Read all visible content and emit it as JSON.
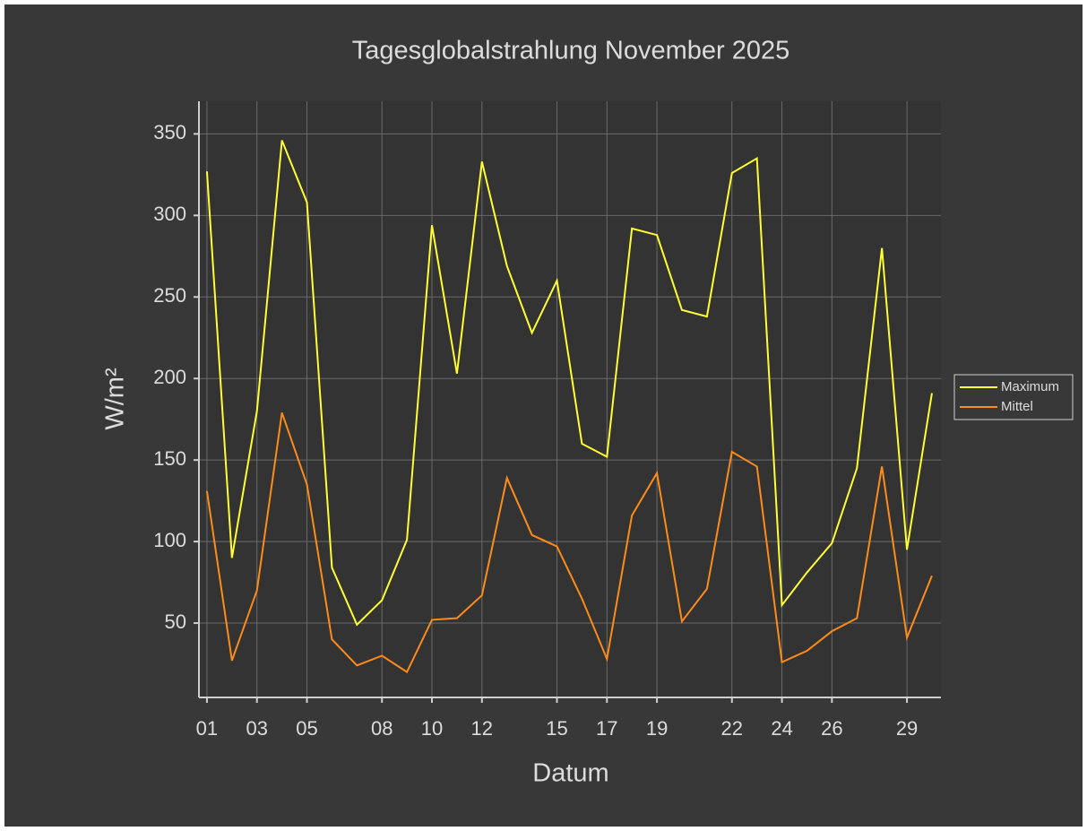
{
  "chart_data": {
    "type": "line",
    "title": "Tagesglobalstrahlung November 2025",
    "x_label": "Datum",
    "y_label": "W/m²",
    "x": [
      1,
      2,
      3,
      4,
      5,
      6,
      7,
      8,
      9,
      10,
      11,
      12,
      13,
      14,
      15,
      16,
      17,
      18,
      19,
      20,
      21,
      22,
      23,
      24,
      25,
      26,
      27,
      28,
      29,
      30
    ],
    "series": [
      {
        "name": "Maximum",
        "color": "#ffff33",
        "values": [
          327,
          90,
          180,
          346,
          308,
          84,
          49,
          64,
          101,
          294,
          203,
          333,
          269,
          228,
          260,
          160,
          152,
          292,
          288,
          242,
          238,
          326,
          335,
          61,
          81,
          99,
          145,
          280,
          95,
          191
        ]
      },
      {
        "name": "Mittel",
        "color": "#ff8c1a",
        "values": [
          131,
          27,
          70,
          179,
          135,
          40,
          24,
          30,
          20,
          52,
          53,
          67,
          139,
          104,
          97,
          65,
          28,
          116,
          142,
          51,
          71,
          155,
          146,
          26,
          33,
          45,
          53,
          146,
          41,
          79
        ]
      }
    ],
    "xlim": [
      0.68,
      30.36
    ],
    "ylim": [
      4.4,
      370
    ],
    "xticks": [
      {
        "value": 1,
        "label": "01"
      },
      {
        "value": 3,
        "label": "03"
      },
      {
        "value": 5,
        "label": "05"
      },
      {
        "value": 8,
        "label": "08"
      },
      10,
      12,
      15,
      17,
      19,
      22,
      24,
      26,
      29
    ],
    "yticks": [
      50,
      100,
      150,
      200,
      250,
      300,
      350
    ],
    "grid": true,
    "legend": "right"
  }
}
